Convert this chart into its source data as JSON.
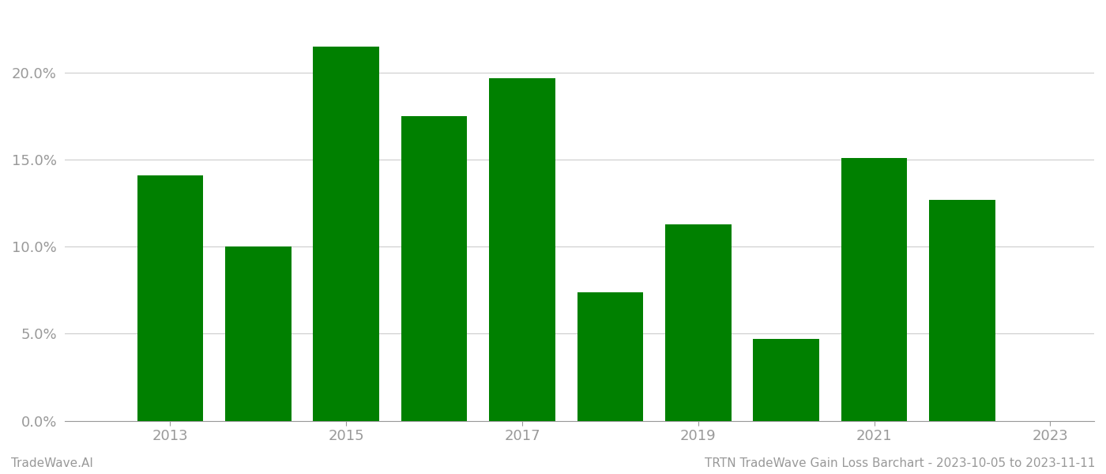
{
  "years": [
    2013,
    2014,
    2015,
    2016,
    2017,
    2018,
    2019,
    2020,
    2021,
    2022
  ],
  "values": [
    0.141,
    0.1,
    0.215,
    0.175,
    0.197,
    0.074,
    0.113,
    0.047,
    0.151,
    0.127
  ],
  "bar_color": "#008000",
  "background_color": "#ffffff",
  "grid_color": "#cccccc",
  "axis_color": "#999999",
  "tick_color": "#999999",
  "ylim": [
    0,
    0.235
  ],
  "yticks": [
    0.0,
    0.05,
    0.1,
    0.15,
    0.2
  ],
  "xlim_left": 2011.8,
  "xlim_right": 2023.5,
  "xlabel": "",
  "ylabel": "",
  "footer_left": "TradeWave.AI",
  "footer_right": "TRTN TradeWave Gain Loss Barchart - 2023-10-05 to 2023-11-11",
  "footer_fontsize": 11,
  "tick_fontsize": 13,
  "bar_width": 0.75
}
